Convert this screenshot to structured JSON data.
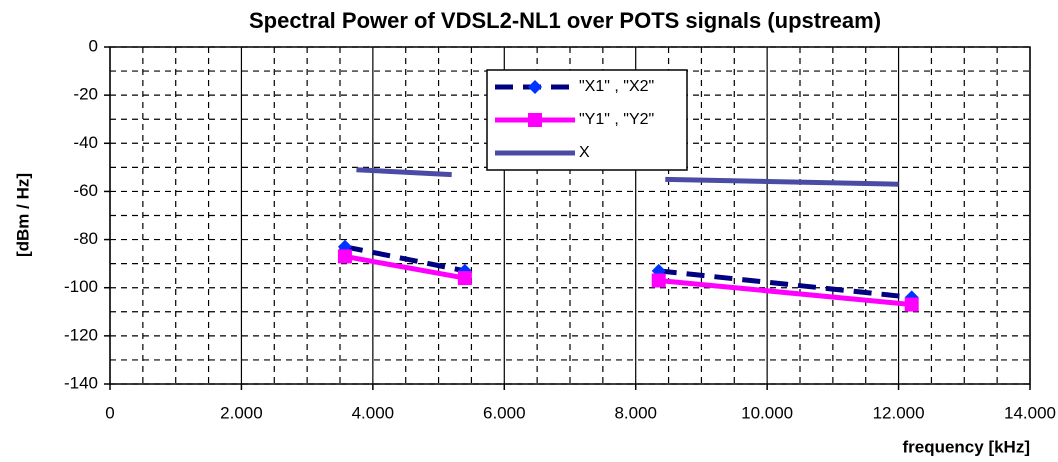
{
  "chart_data": {
    "type": "line",
    "title": "Spectral Power of VDSL2-NL1 over POTS signals (upstream)",
    "x_label": "frequency [kHz]",
    "y_label": "[dBm / Hz]",
    "xlim": [
      0,
      14000
    ],
    "ylim": [
      -140,
      0
    ],
    "xticks": [
      0,
      {
        "value": 2000,
        "label": "2.000"
      },
      {
        "value": 4000,
        "label": "4.000"
      },
      {
        "value": 6000,
        "label": "6.000"
      },
      {
        "value": 8000,
        "label": "8.000"
      },
      {
        "value": 10000,
        "label": "10.000"
      },
      {
        "value": 12000,
        "label": "12.000"
      },
      {
        "value": 14000,
        "label": "14.000"
      }
    ],
    "yticks": [
      0,
      -20,
      -40,
      -60,
      -80,
      -100,
      -120,
      -140
    ],
    "grid": true,
    "legend": "upper-center",
    "series": [
      {
        "name": "\"X1\" , \"X2\"",
        "color": "#000080",
        "marker_color": "#0033ff",
        "marker": "diamond",
        "dash": true,
        "x": [
          3575,
          5400,
          null,
          8350,
          12200
        ],
        "values": [
          -83,
          -93,
          null,
          -93,
          -104
        ]
      },
      {
        "name": "\"Y1\" , \"Y2\"",
        "color": "#ff00ff",
        "marker_color": "#ff00ff",
        "marker": "square",
        "dash": false,
        "x": [
          3575,
          5400,
          null,
          8350,
          12200
        ],
        "values": [
          -87,
          -96,
          null,
          -97,
          -107
        ]
      },
      {
        "name": "X",
        "color": "#4b4ba6",
        "marker": "none",
        "dash": false,
        "x": [
          3750,
          5200,
          null,
          8450,
          12000
        ],
        "values": [
          -51,
          -53,
          null,
          -55,
          -57
        ]
      }
    ]
  }
}
